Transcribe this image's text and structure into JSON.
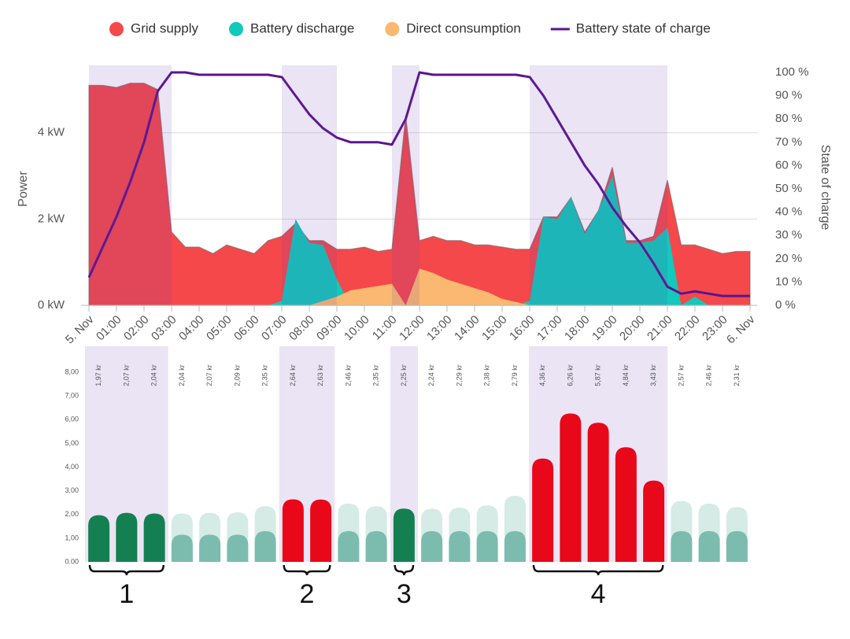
{
  "chart_data": [
    {
      "type": "area",
      "x": [
        0,
        0.5,
        1,
        1.5,
        2,
        2.5,
        3,
        3.5,
        4,
        4.5,
        5,
        5.5,
        6,
        6.5,
        7,
        7.5,
        8,
        8.5,
        9,
        9.5,
        10,
        10.5,
        11,
        11.5,
        12,
        12.5,
        13,
        13.5,
        14,
        14.5,
        15,
        15.5,
        16,
        16.5,
        17,
        17.5,
        18,
        18.5,
        19,
        19.5,
        20,
        20.5,
        21,
        21.5,
        22,
        22.5,
        23,
        23.5,
        24
      ],
      "series": [
        {
          "name": "Grid supply",
          "color": "#f5484b",
          "values": [
            5.1,
            5.1,
            5.05,
            5.15,
            5.15,
            5.0,
            1.7,
            1.35,
            1.35,
            1.2,
            1.4,
            1.3,
            1.2,
            1.5,
            1.6,
            1.9,
            1.5,
            1.5,
            1.3,
            1.3,
            1.35,
            1.25,
            1.3,
            4.4,
            1.5,
            1.6,
            1.5,
            1.5,
            1.4,
            1.4,
            1.35,
            1.3,
            1.3,
            2.05,
            2.05,
            2.5,
            1.7,
            2.2,
            3.2,
            1.5,
            1.5,
            1.6,
            2.9,
            1.4,
            1.4,
            1.3,
            1.2,
            1.25,
            1.25
          ]
        },
        {
          "name": "Battery discharge",
          "color": "#12c9bb",
          "values": [
            0,
            0,
            0,
            0,
            0,
            0,
            0,
            0,
            0,
            0,
            0,
            0,
            0,
            0,
            0.1,
            2.0,
            1.45,
            1.4,
            0.6,
            0,
            0,
            0,
            0,
            0,
            0,
            0,
            0,
            0,
            0,
            0,
            0,
            0,
            0.1,
            2.05,
            2.0,
            2.5,
            1.65,
            2.2,
            3.0,
            1.45,
            1.45,
            1.5,
            1.8,
            0,
            0.2,
            0,
            0,
            0,
            0
          ]
        },
        {
          "name": "Direct consumption",
          "color": "#fbb870",
          "values": [
            0,
            0,
            0,
            0,
            0,
            0,
            0,
            0,
            0,
            0,
            0,
            0,
            0,
            0,
            0,
            0,
            0,
            0.1,
            0.2,
            0.35,
            0.4,
            0.45,
            0.5,
            0,
            0.85,
            0.75,
            0.6,
            0.5,
            0.4,
            0.3,
            0.15,
            0.08,
            0,
            0,
            0,
            0,
            0,
            0,
            0,
            0,
            0,
            0,
            0,
            0,
            0,
            0,
            0,
            0,
            0
          ]
        },
        {
          "name": "Battery state of charge",
          "color": "#5b148e",
          "axis": "y2",
          "values": [
            12,
            25,
            38,
            53,
            70,
            92,
            100,
            100,
            99,
            99,
            99,
            99,
            99,
            99,
            98,
            90,
            82,
            76,
            72,
            70,
            70,
            70,
            69,
            80,
            100,
            99,
            99,
            99,
            99,
            99,
            99,
            99,
            98,
            90,
            80,
            70,
            60,
            52,
            42,
            34,
            27,
            18,
            8,
            5,
            6,
            5,
            4,
            4,
            4
          ]
        }
      ],
      "xlim": [
        0,
        24
      ],
      "xticks": [
        {
          "value": 0,
          "label": "5. Nov"
        },
        {
          "value": 1,
          "label": "01:00"
        },
        {
          "value": 2,
          "label": "02:00"
        },
        {
          "value": 3,
          "label": "03:00"
        },
        {
          "value": 4,
          "label": "04:00"
        },
        {
          "value": 5,
          "label": "05:00"
        },
        {
          "value": 6,
          "label": "06:00"
        },
        {
          "value": 7,
          "label": "07:00"
        },
        {
          "value": 8,
          "label": "08:00"
        },
        {
          "value": 9,
          "label": "09:00"
        },
        {
          "value": 10,
          "label": "10:00"
        },
        {
          "value": 11,
          "label": "11:00"
        },
        {
          "value": 12,
          "label": "12:00"
        },
        {
          "value": 13,
          "label": "13:00"
        },
        {
          "value": 14,
          "label": "14:00"
        },
        {
          "value": 15,
          "label": "15:00"
        },
        {
          "value": 16,
          "label": "16:00"
        },
        {
          "value": 17,
          "label": "17:00"
        },
        {
          "value": 18,
          "label": "18:00"
        },
        {
          "value": 19,
          "label": "19:00"
        },
        {
          "value": 20,
          "label": "20:00"
        },
        {
          "value": 21,
          "label": "21:00"
        },
        {
          "value": 22,
          "label": "22:00"
        },
        {
          "value": 23,
          "label": "23:00"
        },
        {
          "value": 24,
          "label": "6. Nov"
        }
      ],
      "ylim": [
        0,
        5.4
      ],
      "yticks": [
        {
          "value": 0,
          "label": "0 kW"
        },
        {
          "value": 2,
          "label": "2 kW"
        },
        {
          "value": 4,
          "label": "4 kW"
        }
      ],
      "y2lim": [
        0,
        100
      ],
      "y2ticks": [
        {
          "value": 0,
          "label": "0 %"
        },
        {
          "value": 10,
          "label": "10 %"
        },
        {
          "value": 20,
          "label": "20 %"
        },
        {
          "value": 30,
          "label": "30 %"
        },
        {
          "value": 40,
          "label": "40 %"
        },
        {
          "value": 50,
          "label": "50 %"
        },
        {
          "value": 60,
          "label": "60 %"
        },
        {
          "value": 70,
          "label": "70 %"
        },
        {
          "value": 80,
          "label": "80 %"
        },
        {
          "value": 90,
          "label": "90 %"
        },
        {
          "value": 100,
          "label": "100 %"
        }
      ],
      "ylabel": "Power",
      "y2label": "State of charge",
      "grid": true,
      "legend": "top"
    },
    {
      "type": "bar",
      "values": [
        1.97,
        2.07,
        2.04,
        2.04,
        2.07,
        2.09,
        2.35,
        2.64,
        2.63,
        2.46,
        2.35,
        2.25,
        2.24,
        2.29,
        2.38,
        2.79,
        4.36,
        6.26,
        5.87,
        4.84,
        3.43,
        2.57,
        2.46,
        2.31
      ],
      "value_labels": [
        "1,97 kr",
        "2,07 kr",
        "2,04 kr",
        "2,04 kr",
        "2,07 kr",
        "2,09 kr",
        "2,35 kr",
        "2,64 kr",
        "2,63 kr",
        "2,46 kr",
        "2,35 kr",
        "2,25 kr",
        "2,24 kr",
        "2,29 kr",
        "2,38 kr",
        "2,79 kr",
        "4,36 kr",
        "6,26 kr",
        "5,87 kr",
        "4,84 kr",
        "3,43 kr",
        "2,57 kr",
        "2,46 kr",
        "2,31 kr"
      ],
      "colors": [
        "#148051",
        "#148051",
        "#148051",
        "#d5ebe5",
        "#d5ebe5",
        "#d5ebe5",
        "#d5ebe5",
        "#e8081a",
        "#e8081a",
        "#d5ebe5",
        "#d5ebe5",
        "#148051",
        "#d5ebe5",
        "#d5ebe5",
        "#d5ebe5",
        "#d5ebe5",
        "#e8081a",
        "#e8081a",
        "#e8081a",
        "#e8081a",
        "#e8081a",
        "#d5ebe5",
        "#d5ebe5",
        "#d5ebe5"
      ],
      "inner_values": [
        null,
        null,
        null,
        1.15,
        1.15,
        1.15,
        1.3,
        null,
        null,
        1.3,
        1.3,
        null,
        1.3,
        1.3,
        1.3,
        1.3,
        null,
        null,
        null,
        null,
        null,
        1.3,
        1.3,
        1.3
      ],
      "inner_color": "#7bbcaf",
      "ylim": [
        0,
        8
      ],
      "yticks": [
        {
          "value": 0,
          "label": "0.00"
        },
        {
          "value": 1,
          "label": "1,00"
        },
        {
          "value": 2,
          "label": "2,00"
        },
        {
          "value": 3,
          "label": "3,00"
        },
        {
          "value": 4,
          "label": "4,00"
        },
        {
          "value": 5,
          "label": "5,00"
        },
        {
          "value": 6,
          "label": "6,00"
        },
        {
          "value": 7,
          "label": "7,00"
        },
        {
          "value": 8,
          "label": "8,00"
        }
      ]
    }
  ],
  "periods": [
    {
      "label": "1",
      "start": 0,
      "end": 3
    },
    {
      "label": "2",
      "start": 7,
      "end": 9
    },
    {
      "label": "3",
      "start": 11,
      "end": 12
    },
    {
      "label": "4",
      "start": 16,
      "end": 21
    }
  ]
}
